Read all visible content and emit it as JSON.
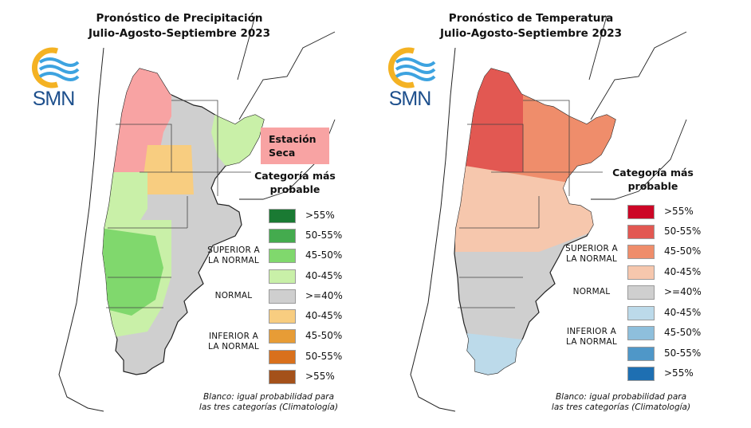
{
  "colors": {
    "sup_55": "#1a7a33",
    "sup_50_55": "#44ab4e",
    "sup_45_50": "#80d86d",
    "sup_40_45": "#c9f0a8",
    "normal": "#cfcfcf",
    "inf_40_45": "#f8cd80",
    "inf_45_50": "#e79c36",
    "inf_50_55": "#d9701c",
    "inf_55": "#a4511a",
    "t_sup_55": "#cc0626",
    "t_sup_50_55": "#e25852",
    "t_sup_45_50": "#ef8d6b",
    "t_sup_40_45": "#f6c7ad",
    "t_inf_40_45": "#bcdaea",
    "t_inf_45_50": "#8ebfdc",
    "t_inf_50_55": "#4f97c8",
    "t_inf_55": "#1e6fb2",
    "dry": "#f8a3a3",
    "logo_sun": "#f4b223",
    "logo_wave": "#3da3e0",
    "logo_text": "#1d4f8c"
  },
  "icons": {
    "logo": "smn-logo-icon"
  },
  "logo_text": "SMN",
  "precip": {
    "title_line1": "Pronóstico de Precipitación",
    "title_line2": "Julio-Agosto-Septiembre 2023",
    "badge": "Estación\nSeca",
    "category_title": "Categoría más\nprobable",
    "legend": [
      ">55%",
      "50-55%",
      "45-50%",
      "40-45%",
      ">=40%",
      "40-45%",
      "45-50%",
      "50-55%",
      ">55%"
    ],
    "group_superior": "SUPERIOR A\nLA NORMAL",
    "group_normal": "NORMAL",
    "group_inferior": "INFERIOR A\nLA NORMAL",
    "note": "Blanco: igual probabilidad para\nlas tres categorías (Climatología)"
  },
  "temp": {
    "title_line1": "Pronóstico de Temperatura",
    "title_line2": "Julio-Agosto-Septiembre 2023",
    "category_title": "Categoría más\nprobable",
    "legend": [
      ">55%",
      "50-55%",
      "45-50%",
      "40-45%",
      ">=40%",
      "40-45%",
      "45-50%",
      "50-55%",
      ">55%"
    ],
    "group_superior": "SUPERIOR A\nLA NORMAL",
    "group_normal": "NORMAL",
    "group_inferior": "INFERIOR A\nLA NORMAL",
    "note": "Blanco: igual probabilidad para\nlas tres categorías (Climatología)"
  }
}
